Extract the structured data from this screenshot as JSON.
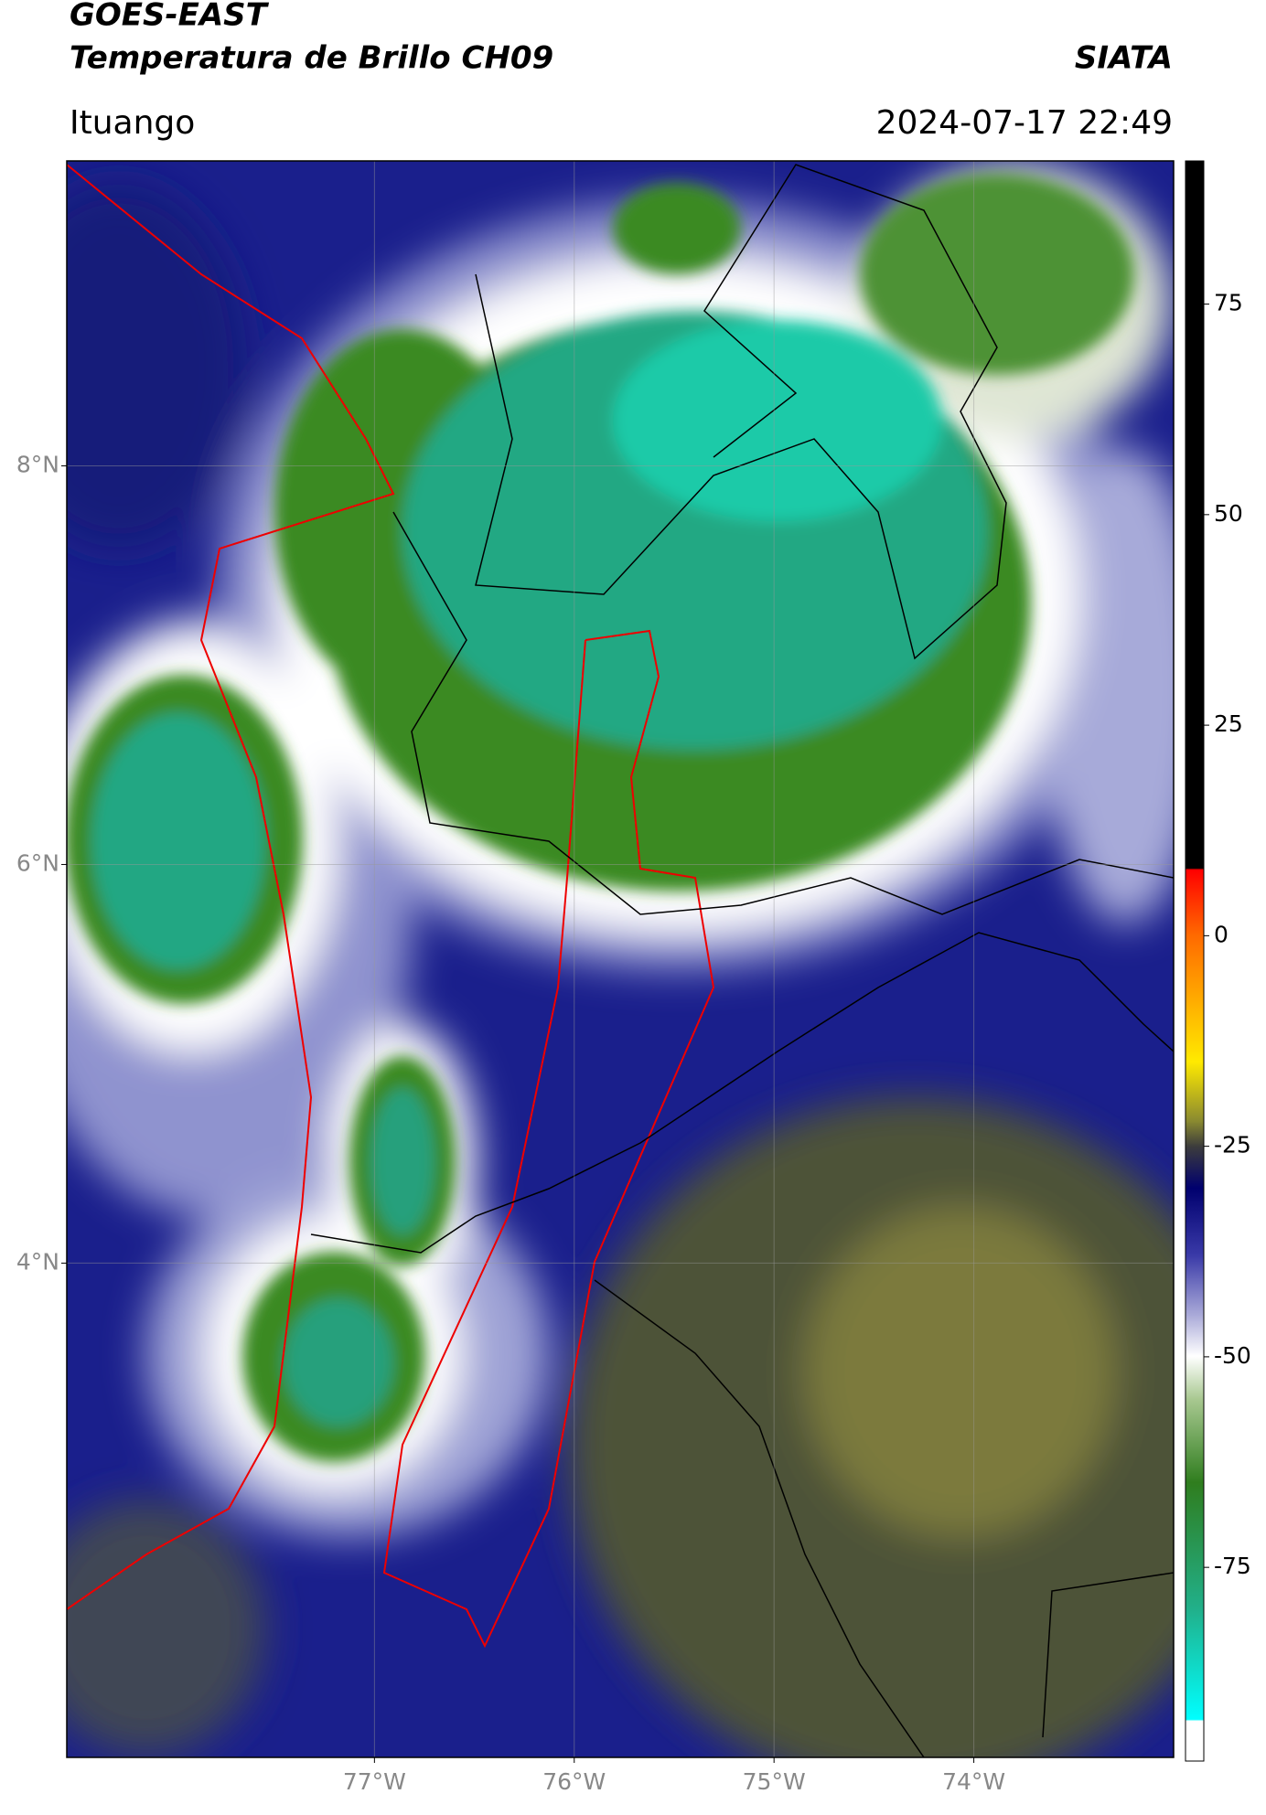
{
  "header": {
    "title_line1": "GOES-EAST",
    "title_line2": "Temperatura de Brillo CH09",
    "source": "SIATA",
    "location": "Ituango",
    "datetime": "2024-07-17 22:49"
  },
  "map": {
    "xlim": [
      -78.54,
      -73.0
    ],
    "ylim": [
      1.52,
      9.53
    ],
    "xticks": [
      {
        "value": -77,
        "label": "77°W"
      },
      {
        "value": -76,
        "label": "76°W"
      },
      {
        "value": -75,
        "label": "75°W"
      },
      {
        "value": -74,
        "label": "74°W"
      }
    ],
    "yticks": [
      {
        "value": 8,
        "label": "8°N"
      },
      {
        "value": 6,
        "label": "6°N"
      },
      {
        "value": 4,
        "label": "4°N"
      }
    ],
    "grid": true
  },
  "colorbar": {
    "clim": [
      -98,
      92
    ],
    "ticks": [
      75,
      50,
      25,
      0,
      -25,
      -50,
      -75
    ]
  }
}
